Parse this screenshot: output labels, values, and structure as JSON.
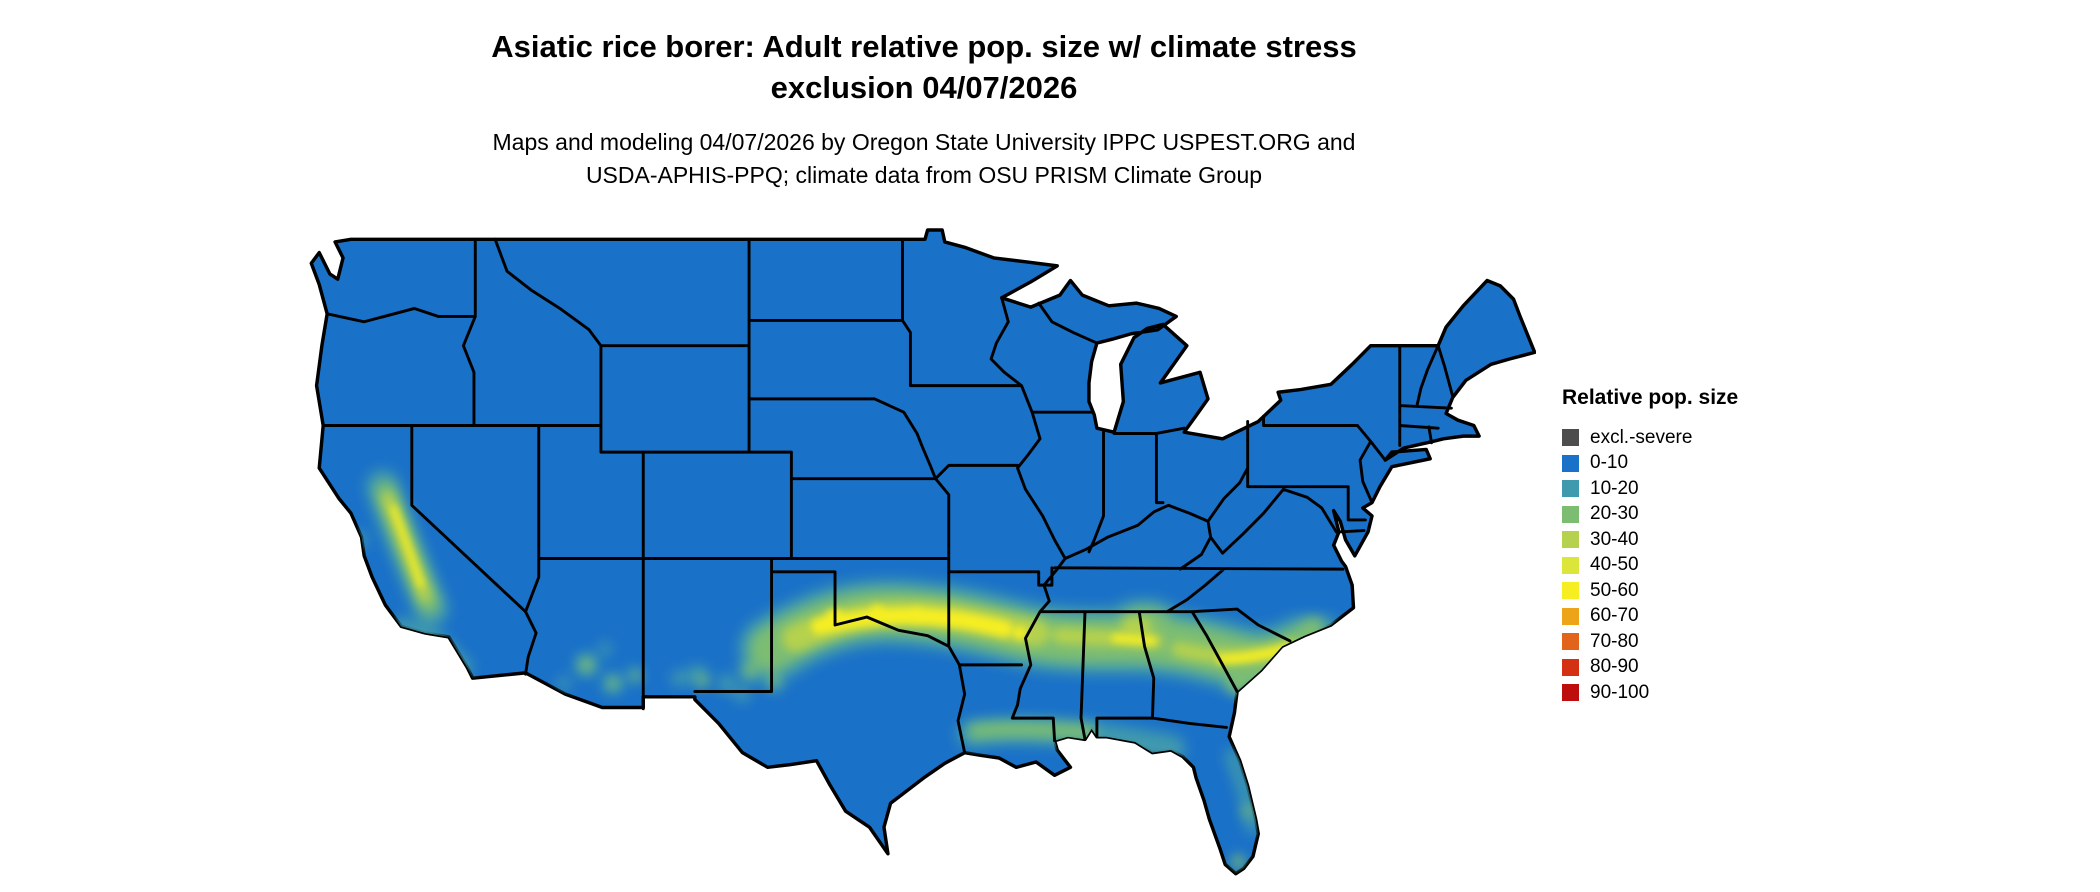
{
  "title": {
    "line1": "Asiatic rice borer: Adult relative pop. size w/ climate stress",
    "line2": "exclusion 04/07/2026"
  },
  "subtitle": {
    "line1": "Maps and modeling 04/07/2026 by Oregon State University IPPC USPEST.ORG and",
    "line2": "USDA-APHIS-PPQ; climate data from OSU PRISM Climate Group"
  },
  "legend": {
    "title": "Relative pop. size",
    "items": [
      {
        "label": "excl.-severe",
        "color": "#4d4d4d"
      },
      {
        "label": "0-10",
        "color": "#1a71c8"
      },
      {
        "label": "10-20",
        "color": "#3f9aad"
      },
      {
        "label": "20-30",
        "color": "#7cbd72"
      },
      {
        "label": "30-40",
        "color": "#b5d14e"
      },
      {
        "label": "40-50",
        "color": "#dce63a"
      },
      {
        "label": "50-60",
        "color": "#f6ee20"
      },
      {
        "label": "60-70",
        "color": "#eda419"
      },
      {
        "label": "70-80",
        "color": "#e2641b"
      },
      {
        "label": "80-90",
        "color": "#d43113"
      },
      {
        "label": "90-100",
        "color": "#bd0d0d"
      }
    ]
  },
  "colors": {
    "state_border": "#000000",
    "water_background": "#ffffff"
  }
}
